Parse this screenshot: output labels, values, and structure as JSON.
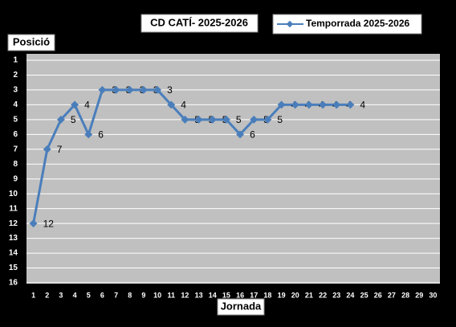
{
  "chart_data": {
    "type": "line",
    "title": "CD CATÍ- 2025-2026",
    "ylabel": "Posició",
    "xlabel": "Jornada",
    "categories": [
      1,
      2,
      3,
      4,
      5,
      6,
      7,
      8,
      9,
      10,
      11,
      12,
      13,
      14,
      15,
      16,
      17,
      18,
      19,
      20,
      21,
      22,
      23,
      24,
      25,
      26,
      27,
      28,
      29,
      30
    ],
    "series": [
      {
        "name": "Temporrada 2025-2026",
        "color": "#4a7ebb",
        "values": [
          12,
          7,
          5,
          4,
          6,
          3,
          3,
          3,
          3,
          3,
          4,
          5,
          5,
          5,
          5,
          6,
          5,
          5,
          4,
          4,
          4,
          4,
          4,
          4,
          null,
          null,
          null,
          null,
          null,
          null
        ]
      }
    ],
    "ylim": [
      1,
      16
    ],
    "yticks": [
      1,
      2,
      3,
      4,
      5,
      6,
      7,
      8,
      9,
      10,
      11,
      12,
      13,
      14,
      15,
      16
    ],
    "y_inverted": true,
    "grid": true,
    "data_labels": true
  }
}
